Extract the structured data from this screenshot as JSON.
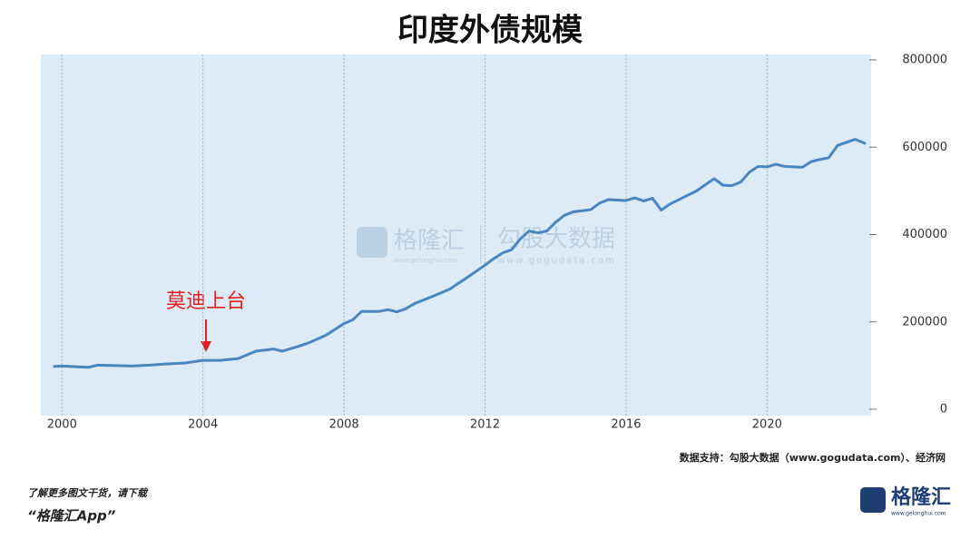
{
  "chart_data": {
    "type": "line",
    "title": "印度外债规模",
    "x": [
      1999.75,
      2000,
      2000.5,
      2000.75,
      2001,
      2001.5,
      2002,
      2002.5,
      2003,
      2003.5,
      2004,
      2004.5,
      2005,
      2005.5,
      2006,
      2006.25,
      2006.75,
      2007,
      2007.5,
      2008,
      2008.25,
      2008.5,
      2009,
      2009.25,
      2009.5,
      2009.75,
      2010,
      2010.5,
      2011,
      2011.5,
      2012,
      2012.25,
      2012.5,
      2012.75,
      2013,
      2013.25,
      2013.5,
      2013.75,
      2014,
      2014.25,
      2014.5,
      2015,
      2015.25,
      2015.5,
      2016,
      2016.25,
      2016.5,
      2016.75,
      2017,
      2017.25,
      2017.75,
      2018,
      2018.5,
      2018.75,
      2019,
      2019.25,
      2019.5,
      2019.75,
      2020,
      2020.25,
      2020.5,
      2021,
      2021.25,
      2021.5,
      2021.75,
      2022,
      2022.5,
      2022.8
    ],
    "series": [
      {
        "color": "#4a86c0",
        "values": [
          98000,
          99000,
          97000,
          96000,
          101000,
          100000,
          99000,
          101000,
          104000,
          106000,
          112000,
          112000,
          116000,
          133000,
          138000,
          133000,
          145000,
          152000,
          170000,
          196000,
          205000,
          224000,
          224000,
          228000,
          223000,
          230000,
          242000,
          258000,
          275000,
          302000,
          330000,
          345000,
          358000,
          365000,
          390000,
          408000,
          404000,
          408000,
          428000,
          444000,
          452000,
          457000,
          472000,
          480000,
          478000,
          484000,
          477000,
          483000,
          456000,
          470000,
          490000,
          500000,
          528000,
          513000,
          512000,
          520000,
          543000,
          556000,
          555000,
          561000,
          556000,
          554000,
          567000,
          572000,
          576000,
          604000,
          618000,
          608000
        ]
      }
    ],
    "xlim": [
      1999.4,
      2022.9
    ],
    "xticks": [
      2000,
      2004,
      2008,
      2012,
      2016,
      2020
    ],
    "ylim": [
      0,
      800000
    ],
    "yticks": [
      0,
      200000,
      400000,
      600000,
      800000
    ],
    "grid": true,
    "annotation": "莫迪上台",
    "watermark": [
      "格隆汇",
      "www.gelonghui.com",
      "勾股大数据",
      "www.gogudata.com"
    ],
    "source": "数据支持：勾股大数据（www.gogudata.com）、经济网"
  },
  "footer": {
    "note": "了解更多图文干货，请下载",
    "app": "“格隆汇App”",
    "logo": "格隆汇",
    "logo_url": "www.gelonghui.com"
  }
}
